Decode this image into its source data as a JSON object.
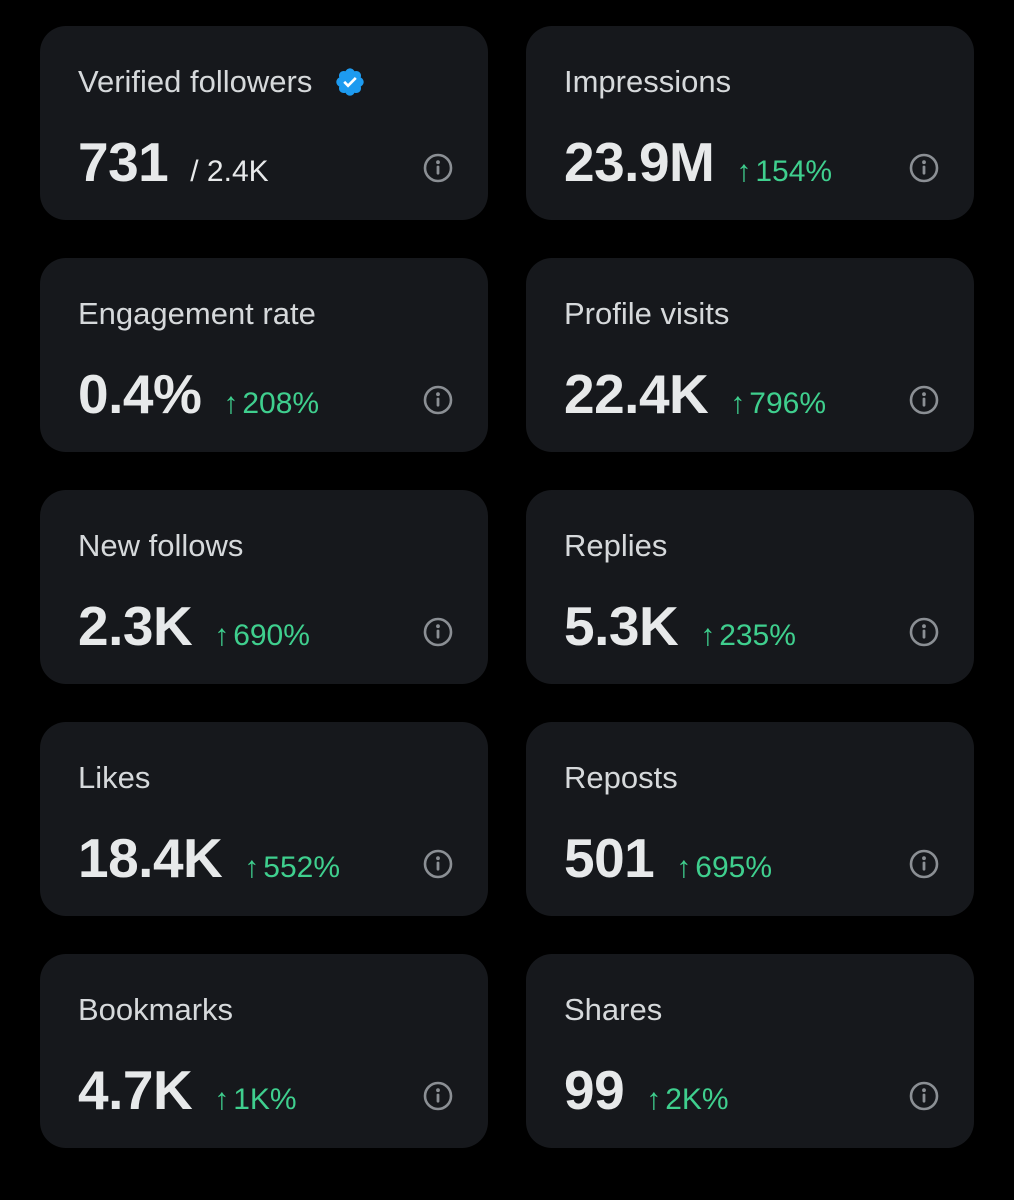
{
  "colors": {
    "background": "#000000",
    "card": "#16181c",
    "label": "#d6d9db",
    "value": "#e7e9ea",
    "positive": "#3fcf8e",
    "verified_badge": "#1d9bf0",
    "info_icon": "#8b8f94"
  },
  "cards": [
    {
      "label": "Verified followers",
      "value": "731",
      "sub": "/ 2.4K",
      "badge_icon": "verified-badge-icon",
      "info_icon": "info-icon"
    },
    {
      "label": "Impressions",
      "value": "23.9M",
      "change_arrow": "↑",
      "change": "154%",
      "info_icon": "info-icon"
    },
    {
      "label": "Engagement rate",
      "value": "0.4%",
      "change_arrow": "↑",
      "change": "208%",
      "info_icon": "info-icon"
    },
    {
      "label": "Profile visits",
      "value": "22.4K",
      "change_arrow": "↑",
      "change": "796%",
      "info_icon": "info-icon"
    },
    {
      "label": "New follows",
      "value": "2.3K",
      "change_arrow": "↑",
      "change": "690%",
      "info_icon": "info-icon"
    },
    {
      "label": "Replies",
      "value": "5.3K",
      "change_arrow": "↑",
      "change": "235%",
      "info_icon": "info-icon"
    },
    {
      "label": "Likes",
      "value": "18.4K",
      "change_arrow": "↑",
      "change": "552%",
      "info_icon": "info-icon"
    },
    {
      "label": "Reposts",
      "value": "501",
      "change_arrow": "↑",
      "change": "695%",
      "info_icon": "info-icon"
    },
    {
      "label": "Bookmarks",
      "value": "4.7K",
      "change_arrow": "↑",
      "change": "1K%",
      "info_icon": "info-icon"
    },
    {
      "label": "Shares",
      "value": "99",
      "change_arrow": "↑",
      "change": "2K%",
      "info_icon": "info-icon"
    }
  ]
}
